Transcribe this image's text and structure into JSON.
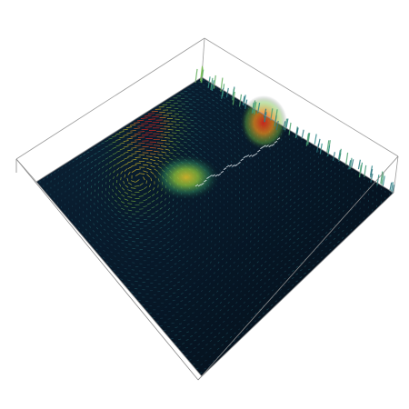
{
  "scene": {
    "background_color": "#ffffff",
    "box_edge_color": "#8a8a8a",
    "floor_color": "#06121e",
    "glyph_shape": "cone-arrow"
  },
  "colormap": {
    "low": "#1e3d5c",
    "mid_low": "#2e8b8b",
    "mid": "#7fc241",
    "mid_high": "#e8c52a",
    "high": "#d8261c"
  },
  "highlights": [
    {
      "id": "central-vortex",
      "level": 0.7
    },
    {
      "id": "top-right-ridge",
      "level": 1.0
    }
  ]
}
